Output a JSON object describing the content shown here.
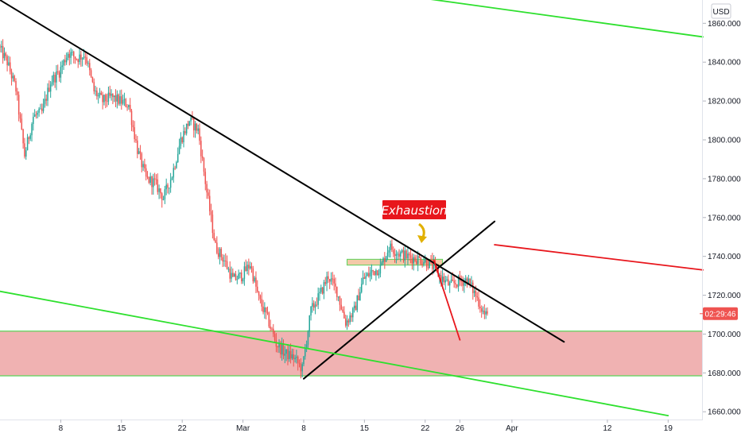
{
  "currency_label": "USD",
  "countdown": "02:29:46",
  "annotation": "Exhaustion",
  "colors": {
    "up": "#26a69a",
    "down": "#ef5350",
    "zone_fill": "#f0b2b2",
    "zone_line": "#5ad45a",
    "trend": "#000000",
    "green_line": "#2ee02e",
    "red_line": "#e8161c",
    "label_bg": "#e8161c",
    "arrow": "#e1b000"
  },
  "chart_data": {
    "type": "candlestick",
    "title": "",
    "xlabel": "",
    "ylabel": "",
    "ylim": [
      1656,
      1872
    ],
    "y_ticks": [
      1660,
      1680,
      1700,
      1720,
      1740,
      1760,
      1780,
      1800,
      1820,
      1840,
      1860
    ],
    "y_tick_labels": [
      "1660.000",
      "1680.000",
      "1700.000",
      "1720.000",
      "1740.000",
      "1760.000",
      "1780.000",
      "1800.000",
      "1820.000",
      "1840.000",
      "1860.000"
    ],
    "xlim": [
      "2021-02-01",
      "2021-04-23"
    ],
    "x_ticks": [
      "2021-02-08",
      "2021-02-15",
      "2021-02-22",
      "2021-03-01",
      "2021-03-08",
      "2021-03-15",
      "2021-03-22",
      "2021-03-26",
      "2021-04-01",
      "2021-04-12",
      "2021-04-19"
    ],
    "x_tick_labels": [
      "8",
      "15",
      "22",
      "Mar",
      "8",
      "15",
      "22",
      "26",
      "Apr",
      "12",
      "19"
    ],
    "last_price": 1710.5,
    "price_path": [
      [
        "2021-02-01",
        1848
      ],
      [
        "2021-02-02",
        1840
      ],
      [
        "2021-02-03",
        1826
      ],
      [
        "2021-02-04",
        1792
      ],
      [
        "2021-02-05",
        1812
      ],
      [
        "2021-02-06",
        1814
      ],
      [
        "2021-02-07",
        1830
      ],
      [
        "2021-02-08",
        1835
      ],
      [
        "2021-02-09",
        1845
      ],
      [
        "2021-02-10",
        1842
      ],
      [
        "2021-02-11",
        1844
      ],
      [
        "2021-02-12",
        1825
      ],
      [
        "2021-02-13",
        1820
      ],
      [
        "2021-02-14",
        1822
      ],
      [
        "2021-02-15",
        1820
      ],
      [
        "2021-02-16",
        1818
      ],
      [
        "2021-02-17",
        1795
      ],
      [
        "2021-02-18",
        1780
      ],
      [
        "2021-02-19",
        1778
      ],
      [
        "2021-02-20",
        1770
      ],
      [
        "2021-02-21",
        1782
      ],
      [
        "2021-02-22",
        1800
      ],
      [
        "2021-02-23",
        1810
      ],
      [
        "2021-02-24",
        1805
      ],
      [
        "2021-02-25",
        1773
      ],
      [
        "2021-02-26",
        1745
      ],
      [
        "2021-02-27",
        1738
      ],
      [
        "2021-02-28",
        1728
      ],
      [
        "2021-03-01",
        1730
      ],
      [
        "2021-03-02",
        1736
      ],
      [
        "2021-03-03",
        1718
      ],
      [
        "2021-03-04",
        1708
      ],
      [
        "2021-03-05",
        1695
      ],
      [
        "2021-03-06",
        1690
      ],
      [
        "2021-03-07",
        1688
      ],
      [
        "2021-03-08",
        1682
      ],
      [
        "2021-03-09",
        1712
      ],
      [
        "2021-03-10",
        1720
      ],
      [
        "2021-03-11",
        1730
      ],
      [
        "2021-03-12",
        1722
      ],
      [
        "2021-03-13",
        1706
      ],
      [
        "2021-03-14",
        1712
      ],
      [
        "2021-03-15",
        1728
      ],
      [
        "2021-03-16",
        1732
      ],
      [
        "2021-03-17",
        1734
      ],
      [
        "2021-03-18",
        1745
      ],
      [
        "2021-03-19",
        1742
      ],
      [
        "2021-03-20",
        1740
      ],
      [
        "2021-03-21",
        1739
      ],
      [
        "2021-03-22",
        1738
      ],
      [
        "2021-03-23",
        1735
      ],
      [
        "2021-03-24",
        1729
      ],
      [
        "2021-03-25",
        1725
      ],
      [
        "2021-03-26",
        1727
      ],
      [
        "2021-03-27",
        1728
      ],
      [
        "2021-03-28",
        1720
      ],
      [
        "2021-03-29",
        1710
      ]
    ],
    "zones": [
      {
        "kind": "support",
        "from": 1678.5,
        "to": 1701.5
      },
      {
        "kind": "resistance",
        "from": 1735.5,
        "to": 1738.5,
        "x_from": "2021-03-13",
        "x_to": "2021-03-24"
      }
    ],
    "lines": [
      {
        "kind": "trend-black",
        "from": [
          "2021-02-01",
          1872
        ],
        "to": [
          "2021-04-07",
          1696
        ]
      },
      {
        "kind": "trend-black",
        "from": [
          "2021-03-08",
          1677
        ],
        "to": [
          "2021-03-30",
          1758
        ]
      },
      {
        "kind": "channel-green",
        "from": [
          "2021-03-20",
          1874
        ],
        "to": [
          "2021-04-23",
          1853
        ]
      },
      {
        "kind": "channel-green",
        "from": [
          "2021-02-01",
          1722
        ],
        "to": [
          "2021-04-19",
          1658
        ]
      },
      {
        "kind": "red",
        "from": [
          "2021-03-30",
          1746
        ],
        "to": [
          "2021-04-23",
          1733
        ]
      },
      {
        "kind": "red",
        "from": [
          "2021-03-23",
          1738
        ],
        "to": [
          "2021-03-26",
          1697
        ]
      }
    ]
  }
}
